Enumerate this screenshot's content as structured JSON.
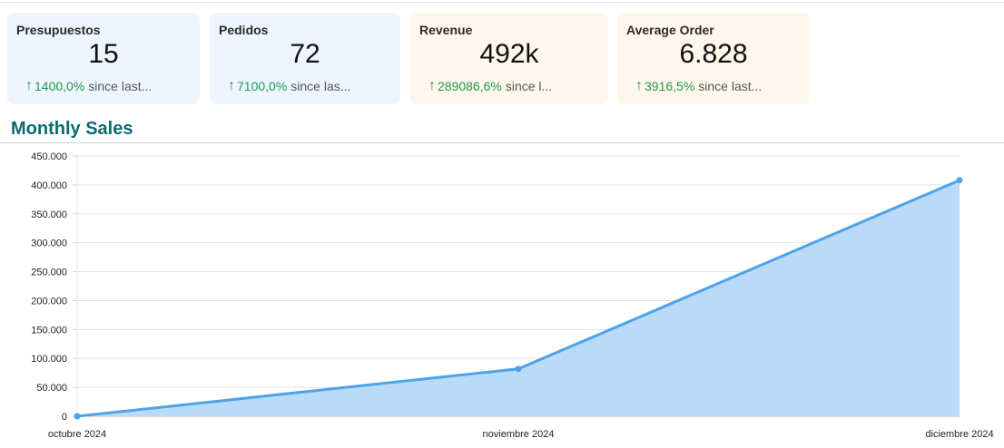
{
  "cards": [
    {
      "id": "presupuestos",
      "title": "Presupuestos",
      "value": "15",
      "delta": "1400,0%",
      "delta_label": "since last...",
      "theme": "blue"
    },
    {
      "id": "pedidos",
      "title": "Pedidos",
      "value": "72",
      "delta": "7100,0%",
      "delta_label": "since las...",
      "theme": "blue"
    },
    {
      "id": "revenue",
      "title": "Revenue",
      "value": "492k",
      "delta": "289086,6%",
      "delta_label": "since l...",
      "theme": "orange"
    },
    {
      "id": "average-order",
      "title": "Average Order",
      "value": "6.828",
      "delta": "3916,5%",
      "delta_label": "since last...",
      "theme": "orange"
    }
  ],
  "section": {
    "title": "Monthly Sales"
  },
  "colors": {
    "line": "#4da3ea",
    "fill": "#b9dbf7",
    "delta_positive": "#1a9a4a",
    "title": "#0b6b6f"
  },
  "chart_data": {
    "type": "area",
    "categories": [
      "octubre 2024",
      "noviembre 2024",
      "diciembre 2024"
    ],
    "values": [
      0,
      82000,
      408000
    ],
    "ylim": [
      0,
      450000
    ],
    "yticks": [
      0,
      50000,
      100000,
      150000,
      200000,
      250000,
      300000,
      350000,
      400000,
      450000
    ],
    "ytick_labels": [
      "0",
      "50.000",
      "100.000",
      "150.000",
      "200.000",
      "250.000",
      "300.000",
      "350.000",
      "400.000",
      "450.000"
    ],
    "grid": true
  }
}
